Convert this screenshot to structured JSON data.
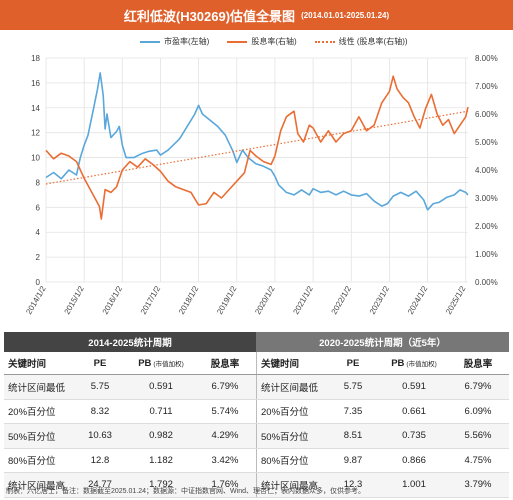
{
  "title": {
    "main": "红利低波(H30269)估值全景图",
    "range": "(2014.01.01-2025.01.24)"
  },
  "legend": {
    "pe": "市盈率(左轴)",
    "dy": "股息率(右轴)",
    "trend": "线性 (股息率(右轴))"
  },
  "colors": {
    "pe": "#5aa7dc",
    "dy": "#ea6d33",
    "title_bg": "#e0602b",
    "hdr_left": "#444444",
    "hdr_right": "#777777"
  },
  "chart_data": {
    "type": "line",
    "x_labels": [
      "2014/1/2",
      "2015/1/2",
      "2016/1/2",
      "2017/1/2",
      "2018/1/2",
      "2019/1/2",
      "2020/1/2",
      "2021/1/2",
      "2022/1/2",
      "2023/1/2",
      "2024/1/2",
      "2025/1/2"
    ],
    "x_start_year": 2014.0,
    "x_end_year": 2025.06,
    "ylim_left": [
      0,
      18
    ],
    "yticks_left": [
      "0",
      "2",
      "4",
      "6",
      "8",
      "10",
      "12",
      "14",
      "16",
      "18"
    ],
    "ylim_right": [
      0,
      8
    ],
    "yticks_right": [
      "0.00%",
      "1.00%",
      "2.00%",
      "3.00%",
      "4.00%",
      "5.00%",
      "6.00%",
      "7.00%",
      "8.00%"
    ],
    "grid": true,
    "series": [
      {
        "name": "市盈率(左轴)",
        "axis": "left",
        "points": [
          [
            2014.0,
            8.4
          ],
          [
            2014.2,
            8.8
          ],
          [
            2014.4,
            8.3
          ],
          [
            2014.6,
            9.0
          ],
          [
            2014.8,
            8.6
          ],
          [
            2014.9,
            10.0
          ],
          [
            2015.0,
            11.0
          ],
          [
            2015.1,
            11.8
          ],
          [
            2015.25,
            14.0
          ],
          [
            2015.35,
            15.5
          ],
          [
            2015.42,
            16.8
          ],
          [
            2015.5,
            15.0
          ],
          [
            2015.55,
            12.3
          ],
          [
            2015.6,
            13.5
          ],
          [
            2015.7,
            11.6
          ],
          [
            2015.85,
            12.1
          ],
          [
            2015.92,
            12.5
          ],
          [
            2016.0,
            11.0
          ],
          [
            2016.1,
            10.0
          ],
          [
            2016.3,
            10.0
          ],
          [
            2016.5,
            10.3
          ],
          [
            2016.7,
            10.5
          ],
          [
            2016.9,
            10.6
          ],
          [
            2017.0,
            10.2
          ],
          [
            2017.2,
            10.6
          ],
          [
            2017.5,
            11.5
          ],
          [
            2017.7,
            12.5
          ],
          [
            2017.9,
            13.5
          ],
          [
            2018.0,
            14.2
          ],
          [
            2018.1,
            13.5
          ],
          [
            2018.3,
            13.0
          ],
          [
            2018.5,
            12.5
          ],
          [
            2018.7,
            11.8
          ],
          [
            2018.9,
            10.5
          ],
          [
            2019.0,
            9.6
          ],
          [
            2019.15,
            10.6
          ],
          [
            2019.3,
            10.0
          ],
          [
            2019.5,
            9.5
          ],
          [
            2019.7,
            9.3
          ],
          [
            2019.9,
            9.0
          ],
          [
            2020.0,
            8.5
          ],
          [
            2020.1,
            7.8
          ],
          [
            2020.3,
            7.2
          ],
          [
            2020.5,
            7.0
          ],
          [
            2020.7,
            7.4
          ],
          [
            2020.9,
            7.0
          ],
          [
            2021.0,
            7.5
          ],
          [
            2021.2,
            7.2
          ],
          [
            2021.4,
            7.3
          ],
          [
            2021.6,
            7.0
          ],
          [
            2021.8,
            7.3
          ],
          [
            2022.0,
            7.0
          ],
          [
            2022.2,
            6.9
          ],
          [
            2022.4,
            7.1
          ],
          [
            2022.6,
            6.5
          ],
          [
            2022.8,
            6.1
          ],
          [
            2022.95,
            6.3
          ],
          [
            2023.1,
            6.9
          ],
          [
            2023.3,
            7.2
          ],
          [
            2023.5,
            6.9
          ],
          [
            2023.7,
            7.3
          ],
          [
            2023.9,
            6.6
          ],
          [
            2024.0,
            5.8
          ],
          [
            2024.15,
            6.3
          ],
          [
            2024.3,
            6.4
          ],
          [
            2024.5,
            6.8
          ],
          [
            2024.7,
            7.0
          ],
          [
            2024.85,
            7.4
          ],
          [
            2025.0,
            7.2
          ],
          [
            2025.06,
            7.0
          ]
        ]
      },
      {
        "name": "股息率(右轴)",
        "axis": "right",
        "points": [
          [
            2014.0,
            4.7
          ],
          [
            2014.2,
            4.4
          ],
          [
            2014.4,
            4.6
          ],
          [
            2014.6,
            4.5
          ],
          [
            2014.8,
            4.3
          ],
          [
            2015.0,
            3.7
          ],
          [
            2015.2,
            3.2
          ],
          [
            2015.4,
            2.7
          ],
          [
            2015.45,
            2.25
          ],
          [
            2015.55,
            3.3
          ],
          [
            2015.7,
            3.2
          ],
          [
            2015.85,
            3.4
          ],
          [
            2016.0,
            4.0
          ],
          [
            2016.2,
            4.3
          ],
          [
            2016.4,
            4.1
          ],
          [
            2016.6,
            4.4
          ],
          [
            2016.8,
            4.2
          ],
          [
            2017.0,
            3.95
          ],
          [
            2017.2,
            3.6
          ],
          [
            2017.4,
            3.4
          ],
          [
            2017.6,
            3.3
          ],
          [
            2017.8,
            3.2
          ],
          [
            2018.0,
            2.75
          ],
          [
            2018.2,
            2.8
          ],
          [
            2018.4,
            3.2
          ],
          [
            2018.6,
            3.0
          ],
          [
            2018.8,
            3.3
          ],
          [
            2019.0,
            3.6
          ],
          [
            2019.2,
            3.9
          ],
          [
            2019.35,
            4.7
          ],
          [
            2019.5,
            4.5
          ],
          [
            2019.7,
            4.3
          ],
          [
            2019.9,
            4.2
          ],
          [
            2020.0,
            4.5
          ],
          [
            2020.15,
            5.4
          ],
          [
            2020.3,
            5.9
          ],
          [
            2020.5,
            6.1
          ],
          [
            2020.6,
            5.3
          ],
          [
            2020.75,
            5.0
          ],
          [
            2020.9,
            5.6
          ],
          [
            2021.0,
            5.5
          ],
          [
            2021.2,
            5.0
          ],
          [
            2021.4,
            5.4
          ],
          [
            2021.6,
            5.0
          ],
          [
            2021.8,
            5.3
          ],
          [
            2022.0,
            5.4
          ],
          [
            2022.2,
            5.9
          ],
          [
            2022.4,
            5.4
          ],
          [
            2022.6,
            5.6
          ],
          [
            2022.8,
            6.4
          ],
          [
            2023.0,
            6.8
          ],
          [
            2023.1,
            7.35
          ],
          [
            2023.2,
            6.9
          ],
          [
            2023.35,
            6.6
          ],
          [
            2023.5,
            6.4
          ],
          [
            2023.65,
            5.9
          ],
          [
            2023.8,
            5.5
          ],
          [
            2023.95,
            6.2
          ],
          [
            2024.1,
            6.7
          ],
          [
            2024.25,
            6.0
          ],
          [
            2024.4,
            5.6
          ],
          [
            2024.55,
            5.8
          ],
          [
            2024.7,
            5.3
          ],
          [
            2024.85,
            5.6
          ],
          [
            2025.0,
            5.9
          ],
          [
            2025.06,
            6.25
          ]
        ]
      },
      {
        "name": "线性 (股息率(右轴))",
        "axis": "right",
        "style": "dotted",
        "points": [
          [
            2014.0,
            3.5
          ],
          [
            2025.06,
            6.1
          ]
        ]
      }
    ]
  },
  "table": {
    "left_header": "2014-2025统计周期",
    "right_header": "2020-2025统计周期（近5年）",
    "col_key": "关键时间",
    "col_pe": "PE",
    "col_pb": "PB",
    "col_pb_note": "(市值加权)",
    "col_dy": "股息率",
    "rows": [
      {
        "label": "统计区间最低",
        "pe": "5.75",
        "pb": "0.591",
        "dy": "6.79%",
        "pe2": "5.75",
        "pb2": "0.591",
        "dy2": "6.79%"
      },
      {
        "label": "20%百分位",
        "pe": "8.32",
        "pb": "0.711",
        "dy": "5.74%",
        "pe2": "7.35",
        "pb2": "0.661",
        "dy2": "6.09%"
      },
      {
        "label": "50%百分位",
        "pe": "10.63",
        "pb": "0.982",
        "dy": "4.29%",
        "pe2": "8.51",
        "pb2": "0.735",
        "dy2": "5.56%"
      },
      {
        "label": "80%百分位",
        "pe": "12.8",
        "pb": "1.182",
        "dy": "3.42%",
        "pe2": "9.87",
        "pb2": "0.866",
        "dy2": "4.75%"
      },
      {
        "label": "统计区间最高",
        "pe": "24.77",
        "pb": "1.792",
        "dy": "1.76%",
        "pe2": "12.3",
        "pb2": "1.001",
        "dy2": "3.79%"
      }
    ]
  },
  "footer": "制表：六亿居士，备注：数据截至2025.01.24；数据源：中证指数官网、Wind、理杏仁；表内数据众多，仅供参考。"
}
